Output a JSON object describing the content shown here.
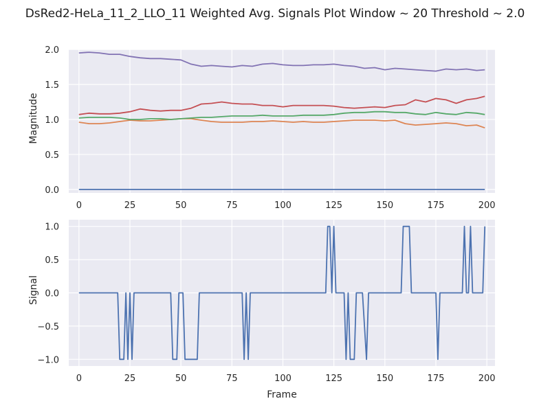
{
  "figure": {
    "title": "DsRed2-HeLa_11_2_LLO_11 Weighted Avg. Signals Plot Window ~ 20 Threshold ~ 2.0"
  },
  "chart_data": [
    {
      "type": "line",
      "xlabel": "",
      "ylabel": "Magnitude",
      "xlim": [
        -5,
        204
      ],
      "ylim": [
        -0.05,
        2.0
      ],
      "xticks": [
        0,
        25,
        50,
        75,
        100,
        125,
        150,
        175,
        200
      ],
      "xtick_labels": [
        "0",
        "25",
        "50",
        "75",
        "100",
        "125",
        "150",
        "175",
        "200"
      ],
      "yticks": [
        0.0,
        0.5,
        1.0,
        1.5,
        2.0
      ],
      "ytick_labels": [
        "0.0",
        "0.5",
        "1.0",
        "1.5",
        "2.0"
      ],
      "grid": true,
      "legend": "none",
      "x": [
        0,
        5,
        10,
        15,
        20,
        25,
        30,
        35,
        40,
        45,
        50,
        55,
        60,
        65,
        70,
        75,
        80,
        85,
        90,
        95,
        100,
        105,
        110,
        115,
        120,
        125,
        130,
        135,
        140,
        145,
        150,
        155,
        160,
        165,
        170,
        175,
        180,
        185,
        190,
        195,
        199
      ],
      "series": [
        {
          "color": "#4c72b0",
          "values": [
            0.0,
            0.0,
            0.0,
            0.0,
            0.0,
            0.0,
            0.0,
            0.0,
            0.0,
            0.0,
            0.0,
            0.0,
            0.0,
            0.0,
            0.0,
            0.0,
            0.0,
            0.0,
            0.0,
            0.0,
            0.0,
            0.0,
            0.0,
            0.0,
            0.0,
            0.0,
            0.0,
            0.0,
            0.0,
            0.0,
            0.0,
            0.0,
            0.0,
            0.0,
            0.0,
            0.0,
            0.0,
            0.0,
            0.0,
            0.0,
            0.0
          ]
        },
        {
          "color": "#dd8452",
          "values": [
            0.96,
            0.94,
            0.94,
            0.95,
            0.97,
            0.99,
            0.98,
            0.98,
            0.99,
            1.0,
            1.01,
            1.01,
            0.99,
            0.97,
            0.96,
            0.96,
            0.96,
            0.97,
            0.97,
            0.98,
            0.97,
            0.96,
            0.97,
            0.96,
            0.96,
            0.97,
            0.98,
            0.99,
            0.99,
            0.99,
            0.98,
            0.99,
            0.94,
            0.92,
            0.93,
            0.94,
            0.95,
            0.94,
            0.91,
            0.92,
            0.88
          ]
        },
        {
          "color": "#55a868",
          "values": [
            1.02,
            1.03,
            1.03,
            1.03,
            1.02,
            1.0,
            1.0,
            1.01,
            1.01,
            1.0,
            1.01,
            1.02,
            1.03,
            1.03,
            1.04,
            1.05,
            1.05,
            1.05,
            1.06,
            1.05,
            1.05,
            1.05,
            1.06,
            1.06,
            1.06,
            1.07,
            1.09,
            1.1,
            1.1,
            1.11,
            1.11,
            1.1,
            1.1,
            1.08,
            1.07,
            1.1,
            1.08,
            1.07,
            1.1,
            1.09,
            1.07
          ]
        },
        {
          "color": "#c44e52",
          "values": [
            1.07,
            1.09,
            1.08,
            1.08,
            1.09,
            1.11,
            1.15,
            1.13,
            1.12,
            1.13,
            1.13,
            1.16,
            1.22,
            1.23,
            1.25,
            1.23,
            1.22,
            1.22,
            1.2,
            1.2,
            1.18,
            1.2,
            1.2,
            1.2,
            1.2,
            1.19,
            1.17,
            1.16,
            1.17,
            1.18,
            1.17,
            1.2,
            1.21,
            1.28,
            1.25,
            1.3,
            1.28,
            1.23,
            1.28,
            1.3,
            1.33
          ]
        },
        {
          "color": "#8172b3",
          "values": [
            1.95,
            1.96,
            1.95,
            1.93,
            1.93,
            1.9,
            1.88,
            1.87,
            1.87,
            1.86,
            1.85,
            1.79,
            1.76,
            1.77,
            1.76,
            1.75,
            1.77,
            1.76,
            1.79,
            1.8,
            1.78,
            1.77,
            1.77,
            1.78,
            1.78,
            1.79,
            1.77,
            1.76,
            1.73,
            1.74,
            1.71,
            1.73,
            1.72,
            1.71,
            1.7,
            1.69,
            1.72,
            1.71,
            1.72,
            1.7,
            1.71
          ]
        }
      ]
    },
    {
      "type": "line",
      "xlabel": "Frame",
      "ylabel": "Signal",
      "xlim": [
        -5,
        204
      ],
      "ylim": [
        -1.1,
        1.1
      ],
      "xticks": [
        0,
        25,
        50,
        75,
        100,
        125,
        150,
        175,
        200
      ],
      "xtick_labels": [
        "0",
        "25",
        "50",
        "75",
        "100",
        "125",
        "150",
        "175",
        "200"
      ],
      "yticks": [
        1.0,
        0.5,
        0.0,
        -0.5,
        -1.0
      ],
      "ytick_labels": [
        "1.0",
        "0.5",
        "0.0",
        "−0.5",
        "−1.0"
      ],
      "grid": true,
      "legend": "none",
      "series": [
        {
          "color": "#4c72b0",
          "x": [
            0,
            19,
            20,
            22,
            23,
            24,
            25,
            26,
            27,
            45,
            46,
            48,
            49,
            51,
            52,
            53,
            58,
            59,
            80,
            81,
            82,
            83,
            84,
            121,
            122,
            123,
            124,
            125,
            126,
            130,
            131,
            132,
            133,
            135,
            136,
            139,
            141,
            142,
            143,
            158,
            159,
            162,
            163,
            175,
            176,
            177,
            188,
            189,
            190,
            191,
            192,
            193,
            198,
            199
          ],
          "values": [
            0,
            0,
            -1,
            -1,
            0,
            -1,
            0,
            -1,
            0,
            0,
            -1,
            -1,
            0,
            0,
            -1,
            -1,
            -1,
            0,
            0,
            -1,
            0,
            -1,
            0,
            0,
            1,
            1,
            0,
            1,
            0,
            0,
            -1,
            0,
            -1,
            -1,
            0,
            0,
            -1,
            0,
            0,
            0,
            1,
            1,
            0,
            0,
            -1,
            0,
            0,
            1,
            0,
            0,
            1,
            0,
            0,
            1
          ]
        }
      ]
    }
  ]
}
